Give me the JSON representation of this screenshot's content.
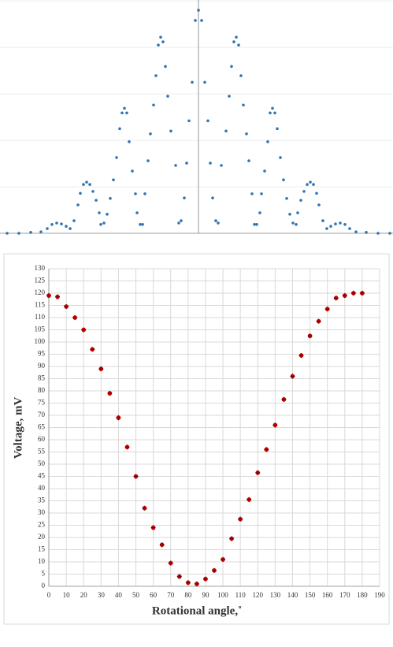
{
  "chart_data": [
    {
      "type": "scatter",
      "color": "#2e75b6",
      "grid": true,
      "tick_labels": false,
      "x": [
        -243,
        -228,
        -213,
        -200,
        -192,
        -186,
        -180,
        -174,
        -168,
        -163,
        -158,
        -153,
        -150,
        -146,
        -142,
        -138,
        -134,
        -130,
        -126,
        -124,
        -120,
        -116,
        -112,
        -108,
        -104,
        -100,
        -97,
        -94,
        -91,
        -88,
        -84,
        -80,
        -78,
        -74,
        -71,
        -68,
        -64,
        -61,
        -57,
        -54,
        -51,
        -48,
        -45,
        -42,
        -39,
        -35,
        -29,
        -25,
        -22,
        -18,
        -15,
        -12,
        -8,
        -4,
        0,
        4,
        8,
        12,
        15,
        18,
        22,
        25,
        29,
        35,
        39,
        42,
        45,
        48,
        51,
        54,
        57,
        61,
        64,
        68,
        71,
        74,
        78,
        80,
        84,
        88,
        91,
        94,
        97,
        100,
        104,
        108,
        112,
        116,
        120,
        124,
        126,
        130,
        134,
        138,
        142,
        146,
        150,
        153,
        158,
        163,
        168,
        174,
        180,
        186,
        192,
        200,
        213,
        228,
        243
      ],
      "values": [
        0,
        0,
        0.02,
        0.03,
        0.1,
        0.19,
        0.22,
        0.2,
        0.15,
        0.1,
        0.27,
        0.61,
        0.86,
        1.05,
        1.1,
        1.05,
        0.9,
        0.71,
        0.44,
        0.19,
        0.22,
        0.41,
        0.75,
        1.15,
        1.63,
        2.25,
        2.59,
        2.69,
        2.59,
        1.97,
        1.34,
        0.85,
        0.44,
        0.19,
        0.19,
        0.85,
        1.56,
        2.14,
        2.76,
        3.39,
        4.05,
        4.22,
        4.12,
        3.59,
        2.95,
        2.2,
        1.46,
        0.22,
        0.27,
        0.76,
        1.51,
        2.42,
        3.25,
        4.58,
        4.8,
        4.58,
        3.25,
        2.42,
        1.51,
        0.76,
        0.27,
        0.22,
        1.46,
        2.2,
        2.95,
        3.59,
        4.12,
        4.22,
        4.05,
        3.39,
        2.76,
        2.14,
        1.56,
        0.85,
        0.19,
        0.19,
        0.44,
        0.85,
        1.34,
        1.97,
        2.59,
        2.69,
        2.59,
        2.25,
        1.63,
        1.15,
        0.75,
        0.41,
        0.22,
        0.19,
        0.44,
        0.71,
        0.9,
        1.05,
        1.1,
        1.05,
        0.86,
        0.61,
        0.27,
        0.1,
        0.15,
        0.2,
        0.22,
        0.19,
        0.1,
        0.03,
        0.02,
        0,
        0
      ],
      "xlim": [
        -252,
        247
      ],
      "ylim": [
        0,
        5.02
      ],
      "yticks": [
        0,
        1,
        2,
        3,
        4,
        5
      ]
    },
    {
      "type": "errorbar",
      "color": "#c00000",
      "grid": true,
      "tick_labels": true,
      "x_label": "Rotational angle,˚",
      "y_label": "Voltage, mV",
      "x": [
        0,
        5,
        10,
        15,
        20,
        25,
        30,
        35,
        40,
        45,
        50,
        55,
        60,
        65,
        70,
        75,
        80,
        85,
        90,
        95,
        100,
        105,
        110,
        115,
        120,
        125,
        130,
        135,
        140,
        145,
        150,
        155,
        160,
        165,
        170,
        175,
        180
      ],
      "values": [
        119,
        118.5,
        114.5,
        110,
        105,
        97,
        89,
        79,
        69,
        57,
        45,
        32,
        24,
        17,
        9.5,
        4,
        1.5,
        1,
        3,
        6.5,
        11,
        19.5,
        27.5,
        35.5,
        46.5,
        56,
        66,
        76.5,
        86,
        94.5,
        102.5,
        108.5,
        113.5,
        118,
        119,
        120,
        120
      ],
      "errors": [
        1,
        1,
        1,
        1,
        1,
        1,
        1,
        1,
        1,
        1,
        1,
        1,
        1,
        1,
        1,
        1,
        1,
        1,
        1,
        1,
        1,
        1,
        1,
        1,
        1,
        1,
        1,
        1,
        1,
        1,
        1,
        1,
        1,
        1,
        1,
        1,
        1
      ],
      "xlim": [
        0,
        190
      ],
      "ylim": [
        0,
        130
      ],
      "xticks": [
        0,
        10,
        20,
        30,
        40,
        50,
        60,
        70,
        80,
        90,
        100,
        110,
        120,
        130,
        140,
        150,
        160,
        170,
        180,
        190
      ],
      "yticks": [
        0,
        5,
        10,
        15,
        20,
        25,
        30,
        35,
        40,
        45,
        50,
        55,
        60,
        65,
        70,
        75,
        80,
        85,
        90,
        95,
        100,
        105,
        110,
        115,
        120,
        125,
        130
      ]
    }
  ]
}
